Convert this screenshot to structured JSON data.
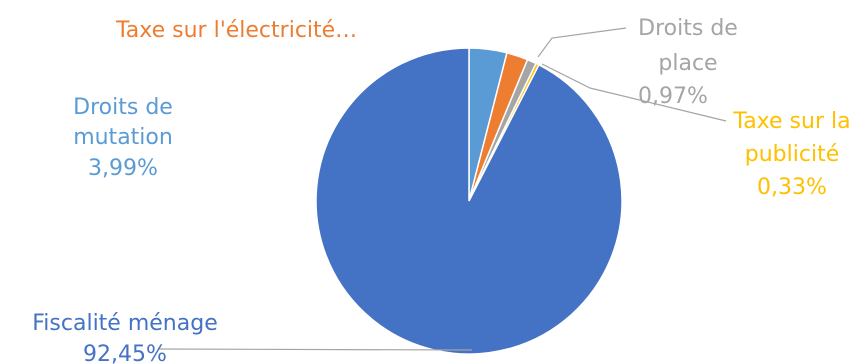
{
  "chart_data": {
    "type": "pie",
    "title": "",
    "slices": [
      {
        "label": "Droits de mutation",
        "value_text": "3,99%",
        "value": 3.99,
        "color": "#5B9BD5"
      },
      {
        "label": "Taxe sur l'électricité…",
        "value_text": "",
        "value": 2.26,
        "color": "#ED7D31"
      },
      {
        "label": "Droits de place",
        "value_text": "0,97%",
        "value": 0.97,
        "color": "#A5A5A5"
      },
      {
        "label": "Taxe sur la publicité",
        "value_text": "0,33%",
        "value": 0.33,
        "color": "#FFC000"
      },
      {
        "label": "Fiscalité ménage",
        "value_text": "92,45%",
        "value": 92.45,
        "color": "#4472C4"
      }
    ],
    "leader_line_color": "#A5A5A5"
  },
  "labels": {
    "droits_mutation": {
      "line1": "Droits de",
      "line2": "mutation",
      "line3": "3,99%"
    },
    "taxe_electricite": {
      "line1": "Taxe sur l'électricité…"
    },
    "droits_place": {
      "line1": "Droits de",
      "line2": "place",
      "line3": "0,97%"
    },
    "taxe_publicite": {
      "line1": "Taxe sur la",
      "line2": "publicité",
      "line3": "0,33%"
    },
    "fiscalite_menage": {
      "line1": "Fiscalité ménage",
      "line2": "92,45%"
    }
  }
}
